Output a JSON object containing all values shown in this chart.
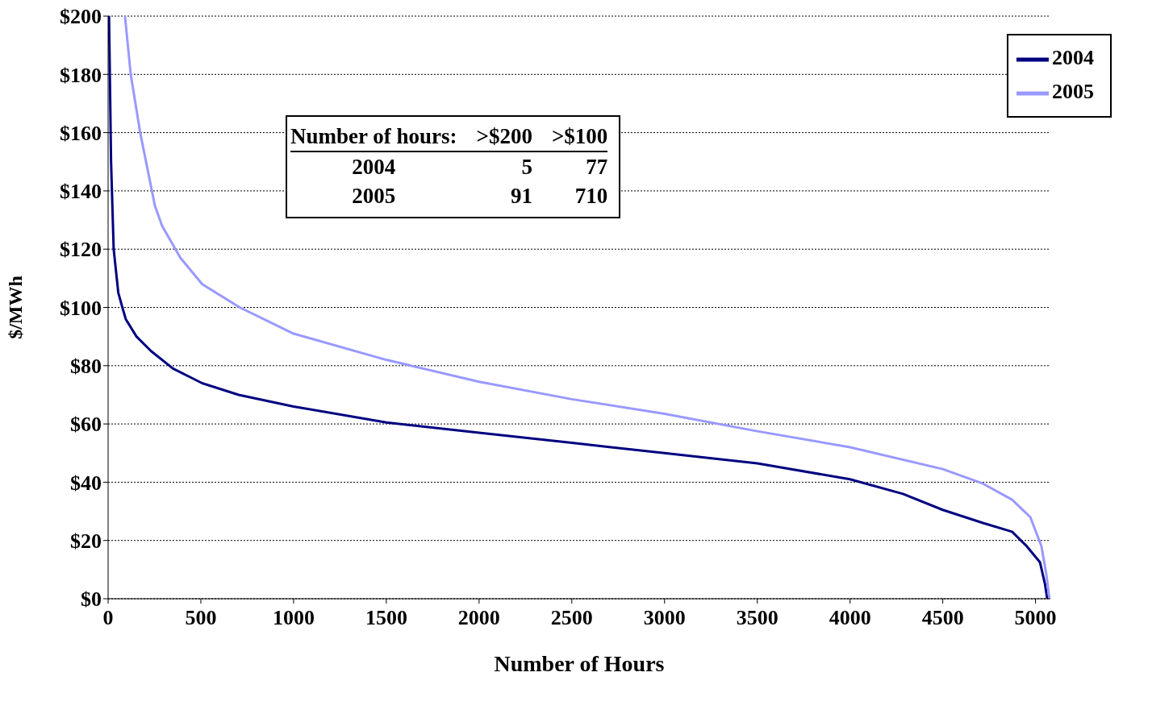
{
  "chart_data": {
    "type": "line",
    "xlabel": "Number of Hours",
    "ylabel": "$/MWh",
    "series": [
      {
        "name": "2004",
        "color": "#000080",
        "x": [
          0,
          5,
          16,
          30,
          55,
          77,
          95,
          153,
          232,
          350,
          507,
          704,
          1000,
          1500,
          2000,
          2500,
          3000,
          3500,
          4000,
          4285,
          4500,
          4717,
          4874,
          4953,
          5024,
          5051,
          5063
        ],
        "values": [
          200,
          200,
          150,
          120,
          105,
          100,
          96,
          90,
          85,
          79,
          74,
          70,
          66,
          60.5,
          57,
          53.5,
          50,
          46.5,
          41,
          36,
          30.5,
          26,
          23,
          18,
          12.5,
          5,
          0
        ]
      },
      {
        "name": "2005",
        "color": "#9999ff",
        "x": [
          91,
          122,
          173,
          252,
          291,
          390,
          507,
          710,
          1000,
          1500,
          2000,
          2500,
          3000,
          3500,
          4000,
          4500,
          4717,
          4874,
          4972,
          5032,
          5059,
          5075
        ],
        "values": [
          200,
          180,
          160,
          135,
          128,
          117,
          108,
          100,
          91,
          82,
          74.5,
          68.5,
          63.5,
          57.5,
          52,
          44.5,
          39.5,
          34,
          28,
          18,
          8,
          0
        ]
      }
    ],
    "xlim": [
      0,
      5080
    ],
    "xticks": [
      0,
      500,
      1000,
      1500,
      2000,
      2500,
      3000,
      3500,
      4000,
      4500,
      5000
    ],
    "ylim": [
      0,
      200
    ],
    "yticks": [
      {
        "value": 0,
        "label": "$0"
      },
      {
        "value": 20,
        "label": "$20"
      },
      {
        "value": 40,
        "label": "$40"
      },
      {
        "value": 60,
        "label": "$60"
      },
      {
        "value": 80,
        "label": "$80"
      },
      {
        "value": 100,
        "label": "$100"
      },
      {
        "value": 120,
        "label": "$120"
      },
      {
        "value": 140,
        "label": "$140"
      },
      {
        "value": 160,
        "label": "$160"
      },
      {
        "value": 180,
        "label": "$180"
      },
      {
        "value": 200,
        "label": "$200"
      }
    ],
    "grid": "y",
    "legend": "top right",
    "marker": "none",
    "line_style": "solid",
    "annotations": [
      "Number of hours:",
      ">$200",
      ">$100",
      "2004",
      "5",
      "77",
      "2005",
      "91",
      "710"
    ]
  }
}
